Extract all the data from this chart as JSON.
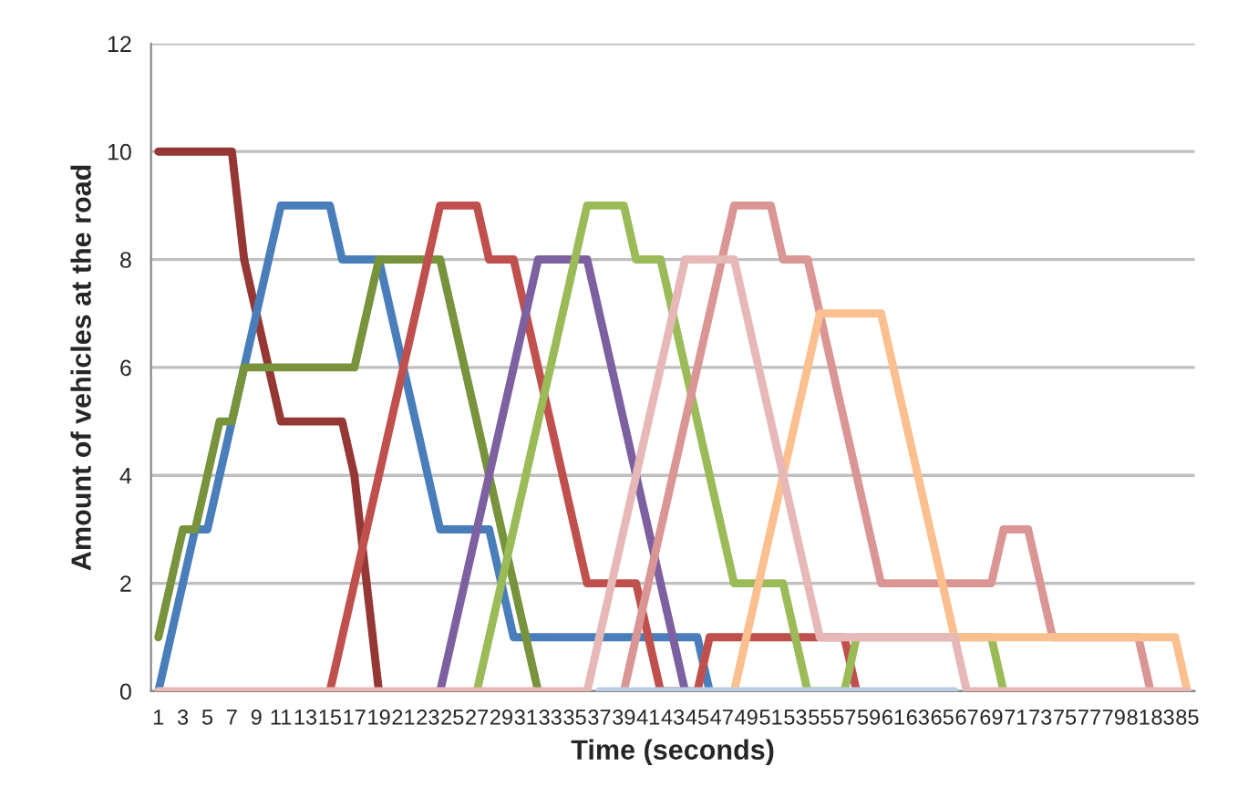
{
  "chart_data": {
    "type": "line",
    "xlabel": "Time (seconds)",
    "ylabel": "Amount of vehicles at the road",
    "categories": [
      "1",
      null,
      "3",
      null,
      "5",
      null,
      "7",
      null,
      "9",
      null,
      "11",
      null,
      "13",
      null,
      "15",
      null,
      "17",
      null,
      "19",
      null,
      "21",
      null,
      "23",
      null,
      "25",
      null,
      "27",
      null,
      "29",
      null,
      "31",
      null,
      "33",
      null,
      "35",
      null,
      "37",
      null,
      "39",
      null,
      "41",
      null,
      "43",
      null,
      "45",
      null,
      "47",
      null,
      "49",
      null,
      "51",
      null,
      "53",
      null,
      "55",
      null,
      "57",
      null,
      "59",
      null,
      "61",
      null,
      "63",
      null,
      "65",
      null,
      "67",
      null,
      "69",
      null,
      "71",
      null,
      "73",
      null,
      "75",
      null,
      "77",
      null,
      "79",
      null,
      "81",
      null,
      "83",
      null,
      "85"
    ],
    "series": [
      {
        "color": "#953735",
        "values": [
          10,
          10,
          10,
          10,
          10,
          10,
          10,
          8,
          7,
          6,
          5,
          5,
          5,
          5,
          5,
          5,
          4,
          2,
          0,
          null,
          null,
          null,
          null,
          null,
          null,
          null,
          null,
          null,
          null,
          null,
          null,
          null,
          null,
          null,
          null,
          null,
          null,
          null,
          null,
          null,
          null,
          null,
          null,
          null,
          null,
          null,
          null,
          null,
          null,
          null,
          null,
          null,
          null,
          null,
          null,
          null,
          null,
          null,
          null,
          null,
          null,
          null,
          null,
          null,
          null,
          null,
          null,
          null,
          null,
          null,
          null,
          null,
          null,
          null,
          null,
          null,
          null,
          null,
          null,
          null,
          null,
          null,
          null,
          null,
          null
        ]
      },
      {
        "color": "#4a7ebb",
        "values": [
          0,
          1,
          2,
          3,
          3,
          4,
          5,
          6,
          7,
          8,
          9,
          9,
          9,
          9,
          9,
          8,
          8,
          8,
          8,
          7,
          6,
          5,
          4,
          3,
          3,
          3,
          3,
          3,
          2,
          1,
          1,
          1,
          1,
          1,
          1,
          1,
          1,
          1,
          1,
          1,
          1,
          1,
          1,
          1,
          1,
          0,
          null,
          null,
          null,
          null,
          null,
          null,
          null,
          null,
          null,
          null,
          null,
          null,
          null,
          null,
          null,
          null,
          null,
          null,
          null,
          null,
          null,
          null,
          null,
          null,
          null,
          null,
          null,
          null,
          null,
          null,
          null,
          null,
          null,
          null,
          null,
          null,
          null,
          null,
          null
        ]
      },
      {
        "color": "#77933c",
        "values": [
          1,
          2,
          3,
          3,
          4,
          5,
          5,
          6,
          6,
          6,
          6,
          6,
          6,
          6,
          6,
          6,
          6,
          7,
          8,
          8,
          8,
          8,
          8,
          8,
          7,
          6,
          5,
          4,
          3,
          2,
          1,
          0,
          null,
          null,
          null,
          null,
          null,
          null,
          null,
          null,
          null,
          null,
          null,
          null,
          null,
          null,
          null,
          null,
          null,
          null,
          null,
          null,
          null,
          null,
          null,
          null,
          null,
          null,
          null,
          null,
          null,
          null,
          null,
          null,
          null,
          null,
          null,
          null,
          null,
          null,
          null,
          null,
          null,
          null,
          null,
          null,
          null,
          null,
          null,
          null,
          null,
          null,
          null,
          null,
          null
        ]
      },
      {
        "color": "#c0504d",
        "values": [
          null,
          null,
          null,
          null,
          null,
          null,
          null,
          null,
          null,
          null,
          null,
          null,
          null,
          null,
          0,
          1,
          2,
          3,
          4,
          5,
          6,
          7,
          8,
          9,
          9,
          9,
          9,
          8,
          8,
          8,
          7,
          6,
          5,
          4,
          3,
          2,
          2,
          2,
          2,
          2,
          1,
          0,
          null,
          null,
          0,
          1,
          1,
          1,
          1,
          1,
          1,
          1,
          1,
          1,
          1,
          1,
          1,
          0,
          null,
          null,
          null,
          null,
          null,
          null,
          null,
          null,
          null,
          null,
          null,
          null,
          null,
          null,
          null,
          null,
          null,
          null,
          null,
          null,
          null,
          null,
          null,
          null,
          null,
          null,
          null
        ]
      },
      {
        "color": "#7d60a0",
        "values": [
          null,
          null,
          null,
          null,
          null,
          null,
          null,
          null,
          null,
          null,
          null,
          null,
          null,
          null,
          null,
          null,
          null,
          null,
          null,
          null,
          null,
          null,
          null,
          0,
          1,
          2,
          3,
          4,
          5,
          6,
          7,
          8,
          8,
          8,
          8,
          8,
          7,
          6,
          5,
          4,
          3,
          2,
          1,
          0,
          null,
          null,
          null,
          null,
          null,
          null,
          null,
          null,
          null,
          null,
          null,
          null,
          null,
          null,
          null,
          null,
          null,
          null,
          null,
          null,
          null,
          null,
          null,
          null,
          null,
          null,
          null,
          null,
          null,
          null,
          null,
          null,
          null,
          null,
          null,
          null,
          null,
          null,
          null,
          null,
          null
        ]
      },
      {
        "color": "#9bbb59",
        "values": [
          null,
          null,
          null,
          null,
          null,
          null,
          null,
          null,
          null,
          null,
          null,
          null,
          null,
          null,
          null,
          null,
          null,
          null,
          null,
          null,
          null,
          null,
          null,
          null,
          null,
          null,
          0,
          1,
          2,
          3,
          4,
          5,
          6,
          7,
          8,
          9,
          9,
          9,
          9,
          8,
          8,
          8,
          7,
          6,
          5,
          4,
          3,
          2,
          2,
          2,
          2,
          2,
          1,
          0,
          null,
          null,
          0,
          1,
          1,
          1,
          1,
          1,
          1,
          1,
          1,
          1,
          1,
          1,
          1,
          0,
          null,
          null,
          null,
          null,
          null,
          null,
          null,
          null,
          null,
          null,
          null,
          null,
          null,
          null,
          null
        ]
      },
      {
        "color": "#d99694",
        "values": [
          null,
          null,
          null,
          null,
          null,
          null,
          null,
          null,
          null,
          null,
          null,
          null,
          null,
          null,
          null,
          null,
          null,
          null,
          null,
          null,
          null,
          null,
          null,
          null,
          null,
          null,
          null,
          null,
          null,
          null,
          null,
          null,
          null,
          null,
          null,
          null,
          null,
          null,
          0,
          1,
          2,
          3,
          4,
          5,
          6,
          7,
          8,
          9,
          9,
          9,
          9,
          8,
          8,
          8,
          7,
          6,
          5,
          4,
          3,
          2,
          2,
          2,
          2,
          2,
          2,
          2,
          2,
          2,
          2,
          3,
          3,
          3,
          2,
          1,
          1,
          1,
          1,
          1,
          1,
          1,
          1,
          0,
          null,
          null,
          null
        ]
      },
      {
        "color": "#fac090",
        "values": [
          null,
          null,
          null,
          null,
          null,
          null,
          null,
          null,
          null,
          null,
          null,
          null,
          null,
          null,
          null,
          null,
          null,
          null,
          null,
          null,
          null,
          null,
          null,
          null,
          null,
          null,
          null,
          null,
          null,
          null,
          null,
          null,
          null,
          null,
          null,
          null,
          null,
          null,
          null,
          null,
          null,
          null,
          null,
          null,
          null,
          null,
          null,
          0,
          1,
          2,
          3,
          4,
          5,
          6,
          7,
          7,
          7,
          7,
          7,
          7,
          6,
          5,
          4,
          3,
          2,
          1,
          1,
          1,
          1,
          1,
          1,
          1,
          1,
          1,
          1,
          1,
          1,
          1,
          1,
          1,
          1,
          1,
          1,
          1,
          0
        ]
      },
      {
        "color": "#e6b9b8",
        "values": [
          0,
          0,
          0,
          0,
          0,
          0,
          0,
          0,
          0,
          0,
          0,
          0,
          0,
          0,
          0,
          0,
          0,
          0,
          0,
          0,
          0,
          0,
          0,
          0,
          0,
          0,
          0,
          0,
          0,
          0,
          0,
          0,
          0,
          0,
          0,
          0,
          1,
          2,
          3,
          4,
          5,
          6,
          7,
          8,
          8,
          8,
          8,
          8,
          7,
          6,
          5,
          4,
          3,
          2,
          1,
          1,
          1,
          1,
          1,
          1,
          1,
          1,
          1,
          1,
          1,
          1,
          0,
          0,
          0,
          0,
          0,
          0,
          0,
          0,
          0,
          0,
          0,
          0,
          0,
          0,
          0,
          0,
          0,
          0,
          0
        ]
      },
      {
        "color": "#b9cde5",
        "values": [
          null,
          null,
          null,
          null,
          null,
          null,
          null,
          null,
          null,
          null,
          null,
          null,
          null,
          null,
          null,
          null,
          null,
          null,
          null,
          null,
          null,
          null,
          null,
          null,
          null,
          null,
          null,
          null,
          null,
          null,
          null,
          null,
          null,
          null,
          null,
          null,
          0,
          0,
          0,
          0,
          0,
          0,
          0,
          0,
          0,
          0,
          0,
          0,
          0,
          0,
          0,
          0,
          0,
          0,
          0,
          0,
          0,
          0,
          0,
          0,
          0,
          0,
          0,
          0,
          0,
          0,
          null,
          null,
          null,
          null,
          null,
          null,
          null,
          null,
          null,
          null,
          null,
          null,
          null,
          null,
          null,
          null,
          null,
          null,
          null
        ]
      }
    ],
    "ylim": [
      0,
      12
    ],
    "yticks": [
      0,
      2,
      4,
      6,
      8,
      10,
      12
    ],
    "grid": "y",
    "legend": false,
    "marker": "none",
    "line_style": "solid"
  }
}
